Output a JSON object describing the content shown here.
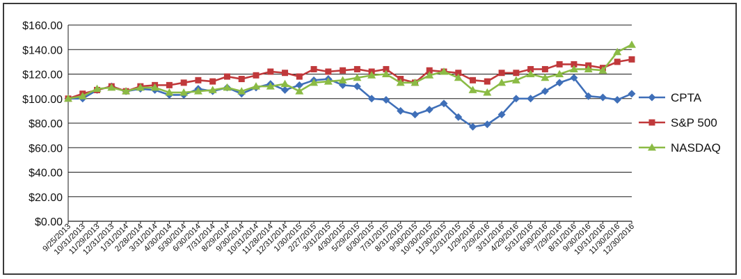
{
  "chart_data": {
    "type": "line",
    "title": "",
    "xlabel": "",
    "ylabel": "",
    "ylim": [
      0,
      160
    ],
    "y_ticks": [
      "$0.00",
      "$20.00",
      "$40.00",
      "$60.00",
      "$80.00",
      "$100.00",
      "$120.00",
      "$140.00",
      "$160.00"
    ],
    "grid": true,
    "legend_position": "right",
    "categories": [
      "9/25/2013",
      "10/31/2013",
      "11/29/2013",
      "12/31/2013",
      "1/31/2014",
      "2/28/2014",
      "3/31/2014",
      "4/30/2014",
      "5/30/2014",
      "6/30/2014",
      "7/31/2014",
      "8/29/2014",
      "9/30/2014",
      "10/31/2014",
      "11/28/2014",
      "12/31/2014",
      "1/30/2015",
      "2/27/2015",
      "3/31/2015",
      "4/30/2015",
      "5/29/2015",
      "6/30/2015",
      "7/31/2015",
      "8/31/2015",
      "9/30/2015",
      "10/30/2015",
      "11/30/2015",
      "12/31/2015",
      "1/29/2016",
      "2/29/2016",
      "3/31/2016",
      "4/29/2016",
      "5/31/2016",
      "6/30/2016",
      "7/29/2016",
      "8/31/2016",
      "9/30/2016",
      "10/31/2016",
      "11/30/2016",
      "12/30/2016"
    ],
    "series": [
      {
        "name": "CPTA",
        "color": "#3f6fb8",
        "marker": "diamond",
        "values": [
          100,
          100,
          107,
          110,
          106,
          108,
          107,
          103,
          103,
          108,
          106,
          109,
          104,
          109,
          112,
          107,
          111,
          115,
          116,
          111,
          110,
          100,
          99,
          90,
          87,
          91,
          96,
          85,
          77,
          79,
          87,
          100,
          100,
          106,
          113,
          117,
          102,
          101,
          99,
          104
        ]
      },
      {
        "name": "S&P 500",
        "color": "#c0393b",
        "marker": "square",
        "values": [
          100,
          104,
          107,
          110,
          106,
          110,
          111,
          111,
          113,
          115,
          114,
          118,
          116,
          119,
          122,
          121,
          118,
          124,
          122,
          123,
          124,
          122,
          124,
          116,
          113,
          123,
          122,
          121,
          115,
          114,
          121,
          121,
          124,
          124,
          128,
          128,
          127,
          125,
          130,
          132
        ]
      },
      {
        "name": "NASDAQ",
        "color": "#8bbb45",
        "marker": "triangle",
        "values": [
          100,
          102,
          108,
          109,
          106,
          109,
          109,
          105,
          105,
          106,
          107,
          109,
          106,
          110,
          110,
          112,
          106,
          113,
          114,
          115,
          117,
          119,
          120,
          113,
          113,
          119,
          122,
          117,
          107,
          105,
          113,
          115,
          120,
          117,
          120,
          124,
          124,
          123,
          138,
          144
        ]
      }
    ]
  }
}
